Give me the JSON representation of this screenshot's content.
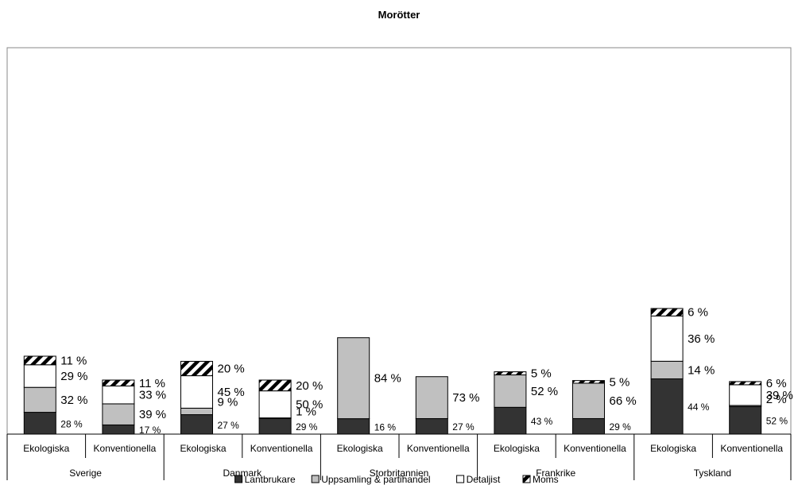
{
  "chart_data": {
    "type": "bar",
    "stacked": true,
    "title": "Morötter",
    "xlabel": "",
    "ylabel": "",
    "grid": false,
    "legend_position": "bottom",
    "groups": [
      {
        "name": "Sverige",
        "categories": [
          "Ekologiska",
          "Konventionella"
        ]
      },
      {
        "name": "Danmark",
        "categories": [
          "Ekologiska",
          "Konventionella"
        ]
      },
      {
        "name": "Storbritannien",
        "categories": [
          "Ekologiska",
          "Konventionella"
        ]
      },
      {
        "name": "Frankrike",
        "categories": [
          "Ekologiska",
          "Konventionella"
        ]
      },
      {
        "name": "Tyskland",
        "categories": [
          "Ekologiska",
          "Konventionella"
        ]
      }
    ],
    "series": [
      {
        "name": "Lantbrukare",
        "color": "#333333",
        "pattern": "solid",
        "values": [
          28,
          17,
          27,
          29,
          16,
          27,
          43,
          29,
          44,
          52
        ]
      },
      {
        "name": "Uppsamling & partihandel",
        "color": "#c0c0c0",
        "pattern": "solid",
        "values": [
          32,
          39,
          9,
          1,
          84,
          73,
          52,
          66,
          14,
          2
        ]
      },
      {
        "name": "Detaljist",
        "color": "#ffffff",
        "pattern": "solid",
        "values": [
          29,
          33,
          45,
          50,
          0,
          0,
          0,
          0,
          36,
          39
        ]
      },
      {
        "name": "Moms",
        "color": "#000000",
        "pattern": "diagonal-hatch",
        "values": [
          11,
          11,
          20,
          20,
          0,
          0,
          5,
          5,
          6,
          6
        ]
      }
    ],
    "bar_totals_relative": [
      1.6,
      1.11,
      1.48,
      1.11,
      1.98,
      1.18,
      1.28,
      1.1,
      2.58,
      1.09
    ],
    "data_labels": [
      [
        "28 %",
        "32 %",
        "29 %",
        "11 %"
      ],
      [
        "17 %",
        "39 %",
        "33 %",
        "11 %"
      ],
      [
        "27 %",
        "9 %",
        "45 %",
        "20 %"
      ],
      [
        "29 %",
        "1 %",
        "50 %",
        "20 %"
      ],
      [
        "16 %",
        "84 %",
        "",
        ""
      ],
      [
        "27 %",
        "73 %",
        "",
        ""
      ],
      [
        "43 %",
        "52 %",
        "",
        "5 %"
      ],
      [
        "29 %",
        "66 %",
        "",
        "5 %"
      ],
      [
        "44 %",
        "14 %",
        "36 %",
        "6 %"
      ],
      [
        "52 %",
        "2 %",
        "39 %",
        "6 %"
      ]
    ]
  }
}
